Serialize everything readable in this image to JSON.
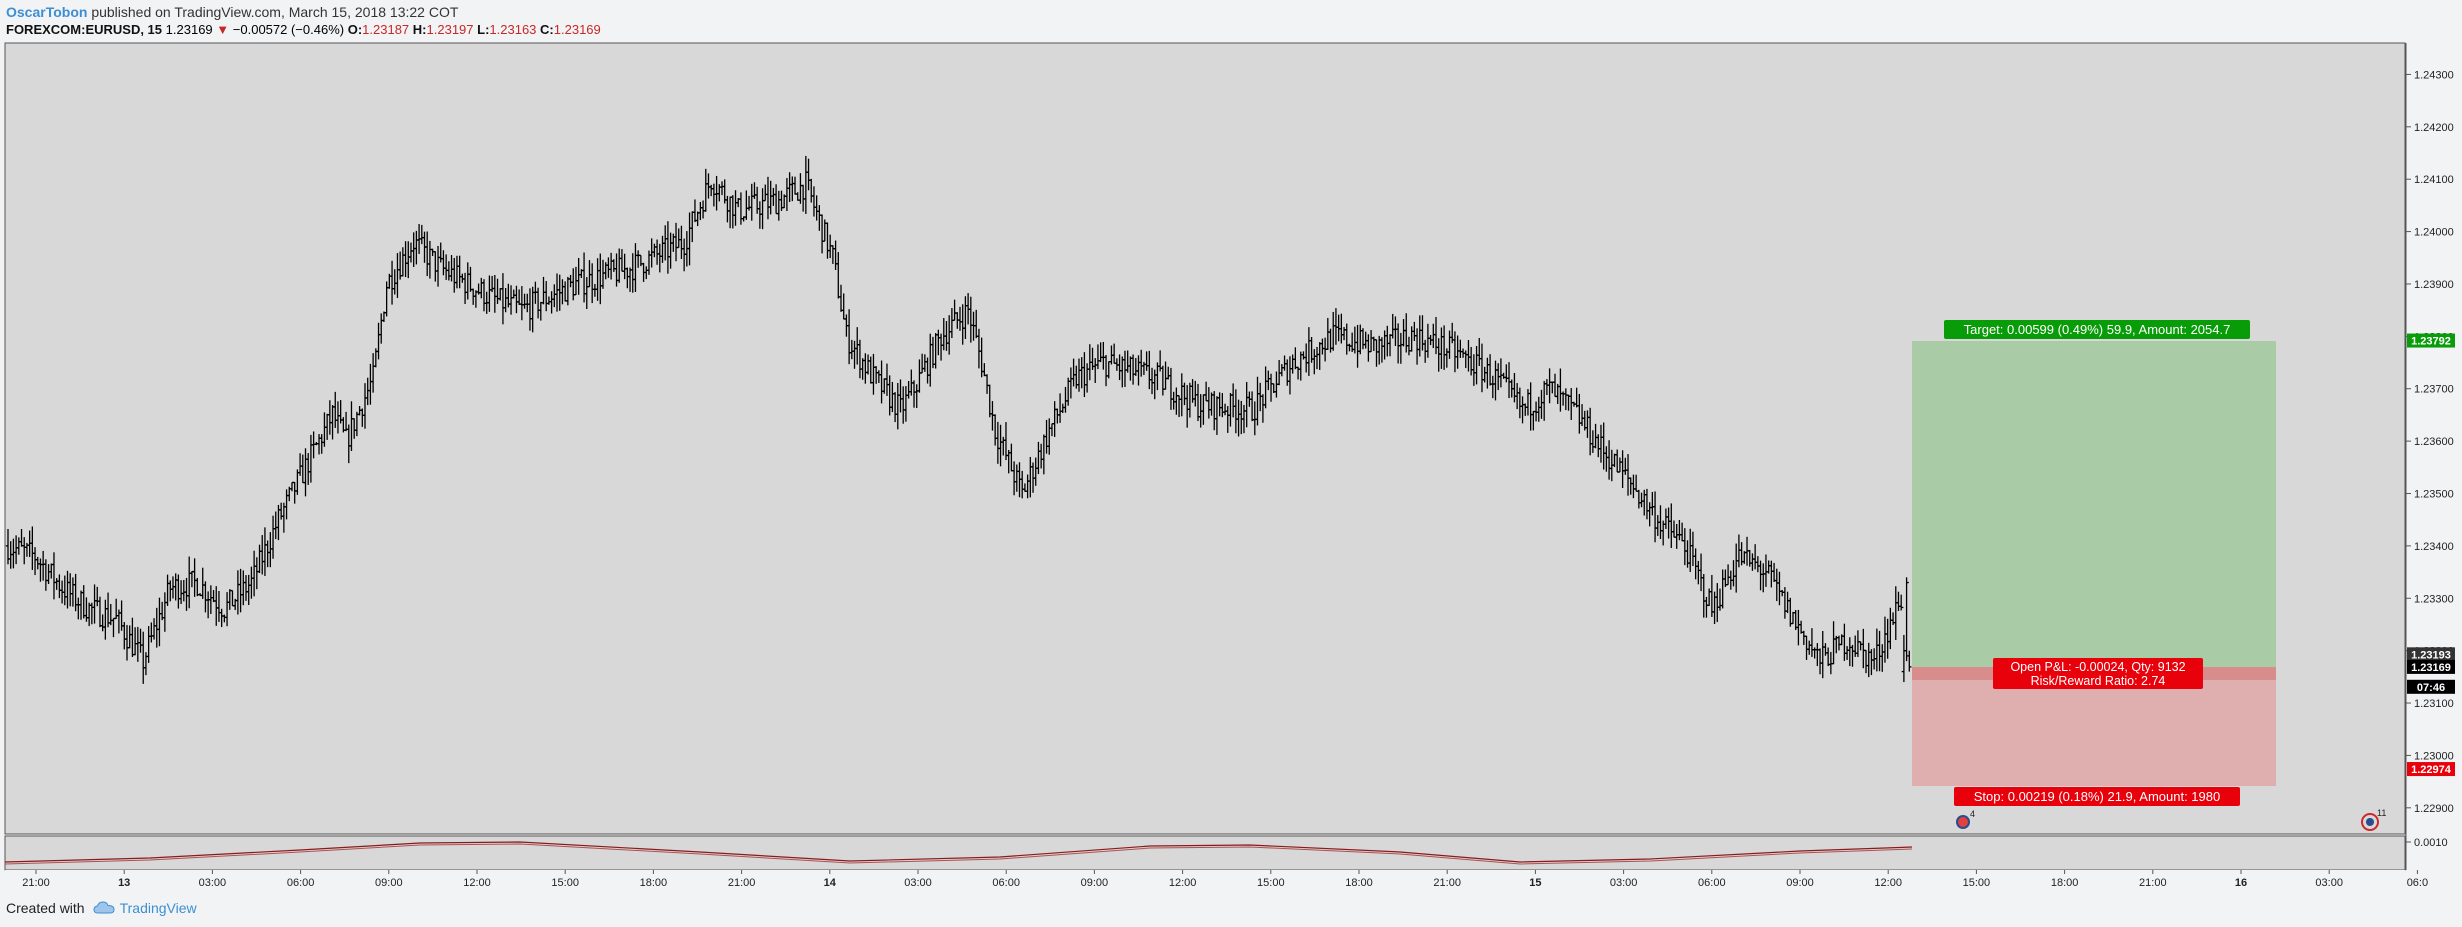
{
  "header": {
    "author": "OscarTobon",
    "published": "published on TradingView.com, March 15, 2018 13:22 COT",
    "symbol": "FOREXCOM:EURUSD, 15",
    "last": "1.23169",
    "change": "−0.00572 (−0.46%)",
    "o_label": "O:",
    "o_value": "1.23187",
    "h_label": "H:",
    "h_value": "1.23197",
    "l_label": "L:",
    "l_value": "1.23163",
    "c_label": "C:",
    "c_value": "1.23169"
  },
  "footer": {
    "created_with": "Created with",
    "brand": "TradingView"
  },
  "colors": {
    "background": "#d8d8d8",
    "bars": "#000000",
    "target_zone": "#a9cba6",
    "stop_zone": "#dfaeae",
    "target_label": "#089c08",
    "stop_label": "#e8000a",
    "oscillator": "#8b1a1a"
  },
  "chart_data": {
    "type": "ohlc",
    "ylim": [
      1.2285,
      1.2436
    ],
    "y_ticks": [
      "1.22900",
      "1.23000",
      "1.23100",
      "1.23200",
      "1.23300",
      "1.23400",
      "1.23500",
      "1.23600",
      "1.23700",
      "1.23800",
      "1.23900",
      "1.24000",
      "1.24100",
      "1.24200",
      "1.24300"
    ],
    "x_ticks": [
      "21:00",
      "13",
      "03:00",
      "06:00",
      "09:00",
      "12:00",
      "15:00",
      "18:00",
      "21:00",
      "14",
      "03:00",
      "06:00",
      "09:00",
      "12:00",
      "15:00",
      "18:00",
      "21:00",
      "15",
      "03:00",
      "06:00",
      "09:00",
      "12:00",
      "15:00",
      "18:00",
      "21:00",
      "16",
      "03:00",
      "06:0"
    ],
    "path": [
      [
        0,
        1.234
      ],
      [
        10,
        1.2338
      ],
      [
        20,
        1.2332
      ],
      [
        30,
        1.2328
      ],
      [
        40,
        1.2326
      ],
      [
        50,
        1.2318
      ],
      [
        60,
        1.2332
      ],
      [
        70,
        1.2333
      ],
      [
        80,
        1.2328
      ],
      [
        90,
        1.2333
      ],
      [
        100,
        1.2345
      ],
      [
        120,
        1.2365
      ],
      [
        125,
        1.236
      ],
      [
        135,
        1.2372
      ],
      [
        140,
        1.239
      ],
      [
        150,
        1.2398
      ],
      [
        160,
        1.2393
      ],
      [
        180,
        1.2387
      ],
      [
        190,
        1.2385
      ],
      [
        210,
        1.239
      ],
      [
        230,
        1.2393
      ],
      [
        250,
        1.2398
      ],
      [
        260,
        1.241
      ],
      [
        270,
        1.2404
      ],
      [
        285,
        1.2406
      ],
      [
        295,
        1.2409
      ],
      [
        305,
        1.2395
      ],
      [
        310,
        1.238
      ],
      [
        320,
        1.2372
      ],
      [
        330,
        1.2366
      ],
      [
        335,
        1.237
      ],
      [
        345,
        1.238
      ],
      [
        355,
        1.2385
      ],
      [
        360,
        1.2375
      ],
      [
        365,
        1.2362
      ],
      [
        375,
        1.235
      ],
      [
        385,
        1.2362
      ],
      [
        395,
        1.2372
      ],
      [
        405,
        1.2375
      ],
      [
        425,
        1.2372
      ],
      [
        440,
        1.2367
      ],
      [
        460,
        1.2366
      ],
      [
        475,
        1.2375
      ],
      [
        490,
        1.238
      ],
      [
        505,
        1.2378
      ],
      [
        520,
        1.238
      ],
      [
        535,
        1.2377
      ],
      [
        550,
        1.2372
      ],
      [
        560,
        1.2366
      ],
      [
        570,
        1.237
      ],
      [
        580,
        1.2365
      ],
      [
        590,
        1.2358
      ],
      [
        600,
        1.2352
      ],
      [
        610,
        1.2345
      ],
      [
        620,
        1.234
      ],
      [
        630,
        1.2328
      ],
      [
        640,
        1.2338
      ],
      [
        650,
        1.2335
      ],
      [
        660,
        1.2326
      ],
      [
        670,
        1.2318
      ],
      [
        680,
        1.2322
      ],
      [
        690,
        1.2318
      ],
      [
        700,
        1.233
      ]
    ],
    "last_bars": [
      {
        "open": 1.2316,
        "high": 1.2323,
        "low": 1.2314,
        "close": 1.232
      },
      {
        "open": 1.232,
        "high": 1.2334,
        "low": 1.2318,
        "close": 1.2333
      },
      {
        "open": 1.2319,
        "high": 1.232,
        "low": 1.2316,
        "close": 1.23169
      }
    ],
    "price_tags": [
      {
        "label": "1.23792",
        "value": 1.23792,
        "color": "#089c08"
      },
      {
        "label": "1.23193",
        "value": 1.23193,
        "color": "#333333"
      },
      {
        "label": "1.23169",
        "value": 1.23169,
        "color": "#000000"
      },
      {
        "label": "07:46",
        "value": 1.23131,
        "color": "#000000"
      },
      {
        "label": "1.22974",
        "value": 1.22974,
        "color": "#e8000a"
      }
    ],
    "position": {
      "entry": 1.23193,
      "target": 1.23792,
      "stop": 1.22974,
      "current": 1.23169,
      "target_label": "Target: 0.00599 (0.49%) 59.9, Amount: 2054.7",
      "stop_label": "Stop: 0.00219 (0.18%) 21.9, Amount: 1980",
      "pnl_line1": "Open P&L: -0.00024, Qty: 9132",
      "pnl_line2": "Risk/Reward Ratio: 2.74"
    },
    "oscillator": {
      "y_tick": "0.0010",
      "badge_left": "4",
      "badge_right": "11"
    }
  }
}
